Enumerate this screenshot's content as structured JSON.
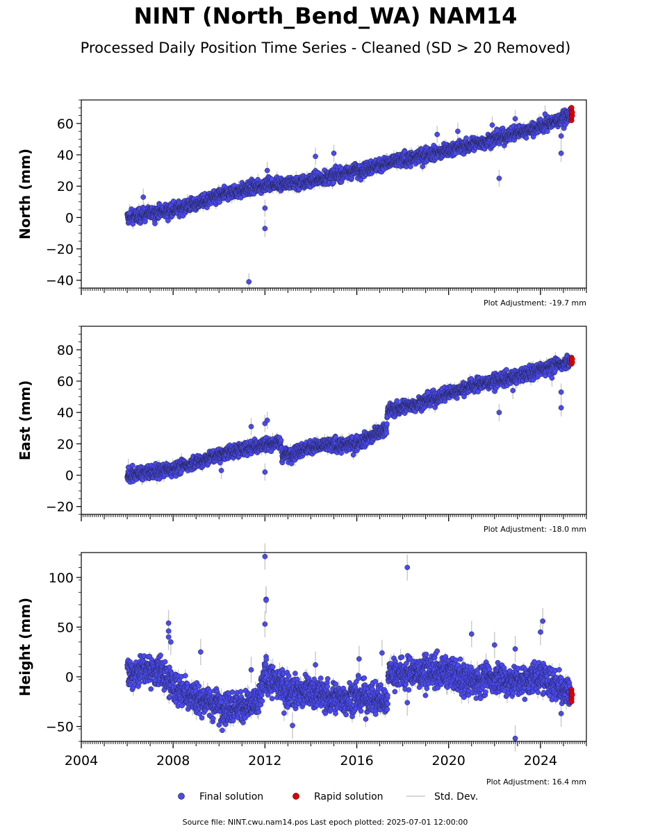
{
  "title": "NINT (North_Bend_WA) NAM14",
  "subtitle": "Processed Daily Position Time Series - Cleaned (SD > 20 Removed)",
  "colors": {
    "final": "#4a4af0",
    "rapid": "#e00000",
    "stddev": "#c8c8c8",
    "edge": "#222244"
  },
  "legend": {
    "final_label": "Final solution",
    "rapid_label": "Rapid solution",
    "stddev_label": "Std. Dev."
  },
  "footer": "Source file: NINT.cwu.nam14.pos  Last epoch plotted: 2025-07-01 12:00:00",
  "chart_data": [
    {
      "type": "scatter",
      "id": "north",
      "ylabel": "North (mm)",
      "adjustment": "Plot Adjustment: -19.7 mm",
      "xlim": [
        2004.0,
        2026.0
      ],
      "ylim": [
        -45,
        75
      ],
      "yticks": [
        -40,
        -20,
        0,
        20,
        40,
        60
      ],
      "ytick_labels": [
        "−40",
        "−20",
        "0",
        "20",
        "40",
        "60"
      ],
      "x_tick_labels": [],
      "trend": [
        [
          2006.0,
          0
        ],
        [
          2008.0,
          5
        ],
        [
          2009.3,
          10
        ],
        [
          2010.5,
          16
        ],
        [
          2012.0,
          21
        ],
        [
          2013.5,
          22
        ],
        [
          2016.0,
          30
        ],
        [
          2017.5,
          35
        ],
        [
          2020.0,
          43
        ],
        [
          2022.0,
          50
        ],
        [
          2024.0,
          58
        ],
        [
          2025.3,
          65
        ]
      ],
      "outliers": [
        [
          2006.1,
          3
        ],
        [
          2006.7,
          13
        ],
        [
          2011.3,
          -41
        ],
        [
          2012.0,
          -7
        ],
        [
          2012.0,
          6
        ],
        [
          2012.1,
          30
        ],
        [
          2014.2,
          39
        ],
        [
          2015.0,
          41
        ],
        [
          2019.5,
          53
        ],
        [
          2020.4,
          55
        ],
        [
          2021.9,
          59
        ],
        [
          2022.2,
          25
        ],
        [
          2022.9,
          63
        ],
        [
          2024.2,
          66
        ],
        [
          2024.9,
          52
        ],
        [
          2024.9,
          41
        ]
      ],
      "rapid": [
        [
          2025.35,
          62
        ],
        [
          2025.35,
          64
        ],
        [
          2025.35,
          66
        ],
        [
          2025.35,
          68
        ],
        [
          2025.35,
          70
        ],
        [
          2025.38,
          65
        ],
        [
          2025.38,
          67
        ]
      ]
    },
    {
      "type": "scatter",
      "id": "east",
      "ylabel": "East (mm)",
      "adjustment": "Plot Adjustment: -18.0 mm",
      "xlim": [
        2004.0,
        2026.0
      ],
      "ylim": [
        -25,
        95
      ],
      "yticks": [
        -20,
        0,
        20,
        40,
        60,
        80
      ],
      "ytick_labels": [
        "−20",
        "0",
        "20",
        "40",
        "60",
        "80"
      ],
      "x_tick_labels": [],
      "trend": [
        [
          2006.0,
          0
        ],
        [
          2008.0,
          4
        ],
        [
          2010.0,
          13
        ],
        [
          2012.0,
          20
        ],
        [
          2012.7,
          21
        ],
        [
          2012.75,
          12
        ],
        [
          2014.0,
          18
        ],
        [
          2016.0,
          20
        ],
        [
          2017.3,
          30
        ],
        [
          2017.35,
          41
        ],
        [
          2019.0,
          47
        ],
        [
          2021.0,
          57
        ],
        [
          2023.0,
          63
        ],
        [
          2025.3,
          73
        ]
      ],
      "outliers": [
        [
          2006.05,
          5
        ],
        [
          2010.1,
          3
        ],
        [
          2011.4,
          31
        ],
        [
          2012.0,
          33
        ],
        [
          2012.1,
          35
        ],
        [
          2012.0,
          2
        ],
        [
          2022.2,
          40
        ],
        [
          2022.8,
          54
        ],
        [
          2024.9,
          53
        ],
        [
          2024.9,
          43
        ],
        [
          2024.5,
          62
        ]
      ],
      "rapid": [
        [
          2025.35,
          71
        ],
        [
          2025.35,
          73
        ],
        [
          2025.35,
          75
        ],
        [
          2025.38,
          72
        ],
        [
          2025.38,
          74
        ]
      ]
    },
    {
      "type": "scatter",
      "id": "height",
      "ylabel": "Height (mm)",
      "adjustment": "Plot Adjustment: 16.4 mm",
      "xlim": [
        2004.0,
        2026.0
      ],
      "ylim": [
        -65,
        125
      ],
      "yticks": [
        -50,
        0,
        50,
        100
      ],
      "ytick_labels": [
        "−50",
        "0",
        "50",
        "100"
      ],
      "x_ticks": [
        2004,
        2008,
        2012,
        2016,
        2020,
        2024
      ],
      "x_tick_labels": [
        "2004",
        "2008",
        "2012",
        "2016",
        "2020",
        "2024"
      ],
      "trend": [
        [
          2006.0,
          3
        ],
        [
          2006.8,
          8
        ],
        [
          2007.5,
          5
        ],
        [
          2008.0,
          -10
        ],
        [
          2009.0,
          -20
        ],
        [
          2010.0,
          -30
        ],
        [
          2011.0,
          -30
        ],
        [
          2011.7,
          -28
        ],
        [
          2012.0,
          0
        ],
        [
          2012.5,
          -5
        ],
        [
          2013.0,
          -15
        ],
        [
          2014.0,
          -15
        ],
        [
          2015.0,
          -22
        ],
        [
          2016.0,
          -20
        ],
        [
          2017.3,
          -25
        ],
        [
          2017.4,
          5
        ],
        [
          2018.0,
          3
        ],
        [
          2019.0,
          5
        ],
        [
          2020.0,
          5
        ],
        [
          2021.0,
          -5
        ],
        [
          2022.0,
          0
        ],
        [
          2023.0,
          -5
        ],
        [
          2024.0,
          0
        ],
        [
          2025.3,
          -15
        ]
      ],
      "outliers": [
        [
          2007.8,
          54
        ],
        [
          2007.8,
          46
        ],
        [
          2007.8,
          40
        ],
        [
          2007.9,
          35
        ],
        [
          2009.2,
          25
        ],
        [
          2011.4,
          7
        ],
        [
          2012.0,
          121
        ],
        [
          2012.05,
          78
        ],
        [
          2012.05,
          77
        ],
        [
          2012.0,
          53
        ],
        [
          2018.2,
          110
        ],
        [
          2021.0,
          43
        ],
        [
          2022.0,
          32
        ],
        [
          2022.9,
          -62
        ],
        [
          2022.9,
          28
        ],
        [
          2024.0,
          45
        ],
        [
          2024.1,
          56
        ],
        [
          2017.1,
          24
        ],
        [
          2016.1,
          18
        ],
        [
          2014.2,
          12
        ],
        [
          2018.2,
          -26
        ],
        [
          2013.2,
          -49
        ],
        [
          2024.9,
          -37
        ]
      ],
      "rapid": [
        [
          2025.35,
          -13
        ],
        [
          2025.35,
          -16
        ],
        [
          2025.35,
          -19
        ],
        [
          2025.35,
          -22
        ],
        [
          2025.35,
          -25
        ],
        [
          2025.38,
          -18
        ]
      ]
    }
  ]
}
